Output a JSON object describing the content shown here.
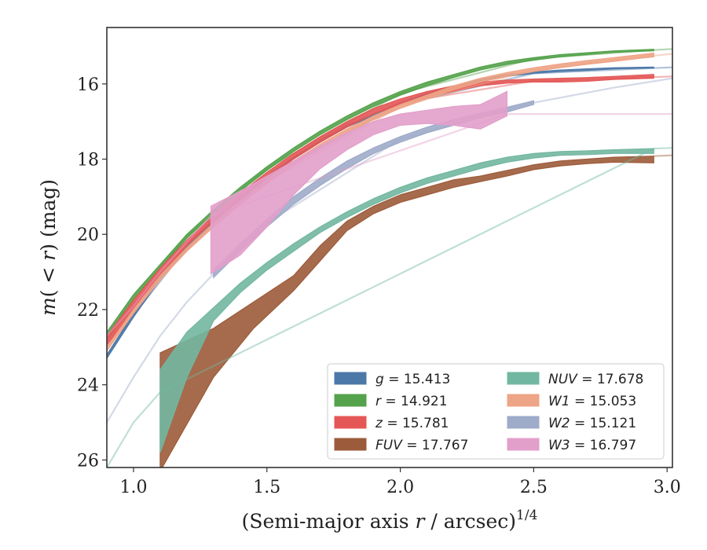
{
  "chart_data": {
    "type": "area",
    "xlabel": "(Semi-major axis r / arcsec)^1/4",
    "xlabel_parts": {
      "main": "(Semi-major axis ",
      "var": "r",
      "mid": " / arcsec)",
      "sup": "1/4"
    },
    "ylabel": "m(<r) (mag)",
    "ylabel_parts": {
      "pre": "m",
      "open": "( ",
      "lt": "<",
      "var": " r",
      "close": ") (mag)"
    },
    "xlim": [
      0.9,
      3.02
    ],
    "ylim": [
      26.2,
      14.5
    ],
    "y_inverted": true,
    "xticks": [
      1.0,
      1.5,
      2.0,
      2.5,
      3.0
    ],
    "xtick_labels": [
      "1.0",
      "1.5",
      "2.0",
      "2.5",
      "3.0"
    ],
    "yticks": [
      16,
      18,
      20,
      22,
      24,
      26
    ],
    "ytick_labels": [
      "16",
      "18",
      "20",
      "22",
      "24",
      "26"
    ],
    "grid": false,
    "legend_position": "lower-right",
    "series": [
      {
        "name": "g = 15.413",
        "band": "g",
        "value": "15.413",
        "color": "#4c78a8",
        "band_x": [
          0.9,
          1.0,
          1.1,
          1.2,
          1.3,
          1.4,
          1.5,
          1.6,
          1.7,
          1.8,
          1.9,
          2.0,
          2.1,
          2.2,
          2.3,
          2.4,
          2.5,
          2.6,
          2.7,
          2.8,
          2.95
        ],
        "band_y_lo": [
          23.2,
          22.1,
          21.1,
          20.3,
          19.6,
          19.0,
          18.45,
          17.95,
          17.5,
          17.1,
          16.8,
          16.5,
          16.25,
          16.05,
          15.88,
          15.75,
          15.68,
          15.63,
          15.6,
          15.57,
          15.55
        ],
        "band_y_hi": [
          23.3,
          22.2,
          21.2,
          20.4,
          19.7,
          19.1,
          18.5,
          18.0,
          17.55,
          17.15,
          16.85,
          16.55,
          16.3,
          16.1,
          15.92,
          15.8,
          15.72,
          15.67,
          15.64,
          15.6,
          15.58
        ],
        "line_x": [
          0.9,
          1.0,
          1.2,
          1.5,
          2.0,
          2.5,
          2.95,
          3.02
        ],
        "line_y": [
          23.25,
          22.15,
          20.35,
          18.5,
          16.55,
          15.72,
          15.58,
          15.56
        ]
      },
      {
        "name": "r = 14.921",
        "band": "r",
        "value": "14.921",
        "color": "#54a24b",
        "band_x": [
          0.9,
          1.0,
          1.1,
          1.2,
          1.3,
          1.4,
          1.5,
          1.6,
          1.7,
          1.8,
          1.9,
          2.0,
          2.1,
          2.2,
          2.3,
          2.4,
          2.5,
          2.6,
          2.7,
          2.8,
          2.95
        ],
        "band_y_lo": [
          22.6,
          21.6,
          20.8,
          20.0,
          19.35,
          18.75,
          18.2,
          17.7,
          17.25,
          16.85,
          16.5,
          16.2,
          15.95,
          15.75,
          15.55,
          15.4,
          15.3,
          15.22,
          15.17,
          15.12,
          15.08
        ],
        "band_y_hi": [
          22.8,
          21.75,
          20.9,
          20.1,
          19.45,
          18.85,
          18.3,
          17.8,
          17.35,
          16.95,
          16.6,
          16.3,
          16.05,
          15.83,
          15.63,
          15.48,
          15.37,
          15.28,
          15.22,
          15.16,
          15.12
        ],
        "line_x": [
          0.9,
          1.0,
          1.2,
          1.5,
          2.0,
          2.5,
          2.95,
          3.02
        ],
        "line_y": [
          22.7,
          21.7,
          20.05,
          18.25,
          16.25,
          15.33,
          15.1,
          15.07
        ]
      },
      {
        "name": "z = 15.781",
        "band": "z",
        "value": "15.781",
        "color": "#e45756",
        "band_x": [
          0.9,
          1.0,
          1.1,
          1.2,
          1.3,
          1.4,
          1.5,
          1.6,
          1.7,
          1.8,
          1.9,
          2.0,
          2.1,
          2.2,
          2.3,
          2.4,
          2.5,
          2.6,
          2.7,
          2.8,
          2.95
        ],
        "band_y_lo": [
          22.7,
          21.75,
          20.9,
          20.15,
          19.5,
          18.9,
          18.35,
          17.85,
          17.4,
          17.0,
          16.65,
          16.4,
          16.2,
          16.05,
          15.95,
          15.9,
          15.87,
          15.85,
          15.83,
          15.8,
          15.75
        ],
        "band_y_hi": [
          22.95,
          22.0,
          21.1,
          20.3,
          19.65,
          19.05,
          18.5,
          18.0,
          17.55,
          17.15,
          16.8,
          16.55,
          16.35,
          16.2,
          16.05,
          15.98,
          15.95,
          15.95,
          15.93,
          15.88,
          15.85
        ],
        "line_x": [
          0.9,
          1.0,
          1.2,
          1.5,
          2.0,
          2.5,
          2.95,
          3.02
        ],
        "line_y": [
          22.85,
          21.85,
          20.25,
          18.45,
          16.5,
          15.92,
          15.82,
          15.8
        ]
      },
      {
        "name": "FUV = 17.767",
        "band": "FUV",
        "value": "17.767",
        "color": "#9c5b3a",
        "band_x": [
          1.1,
          1.3,
          1.45,
          1.6,
          1.7,
          1.8,
          1.9,
          2.0,
          2.1,
          2.2,
          2.3,
          2.4,
          2.5,
          2.6,
          2.7,
          2.8,
          2.95
        ],
        "band_y_lo": [
          23.15,
          22.5,
          21.8,
          21.1,
          20.3,
          19.65,
          19.25,
          18.95,
          18.75,
          18.55,
          18.45,
          18.3,
          18.15,
          18.05,
          18.0,
          17.95,
          17.92
        ],
        "band_y_hi": [
          26.3,
          23.8,
          22.5,
          21.5,
          20.7,
          19.9,
          19.45,
          19.15,
          18.95,
          18.75,
          18.6,
          18.45,
          18.28,
          18.18,
          18.12,
          18.08,
          18.1
        ],
        "line_x": [
          2.95,
          3.02
        ],
        "line_y": [
          17.92,
          17.9
        ]
      },
      {
        "name": "NUV = 17.678",
        "band": "NUV",
        "value": "17.678",
        "color": "#72b7a1",
        "band_x": [
          1.1,
          1.2,
          1.3,
          1.4,
          1.5,
          1.6,
          1.7,
          1.8,
          1.9,
          2.0,
          2.1,
          2.2,
          2.3,
          2.4,
          2.5,
          2.6,
          2.7,
          2.8,
          2.95
        ],
        "band_y_lo": [
          23.6,
          22.6,
          21.95,
          21.3,
          20.75,
          20.25,
          19.8,
          19.4,
          19.05,
          18.75,
          18.5,
          18.3,
          18.1,
          17.95,
          17.85,
          17.8,
          17.78,
          17.75,
          17.72
        ],
        "band_y_hi": [
          25.8,
          23.8,
          22.3,
          21.55,
          20.95,
          20.45,
          19.95,
          19.55,
          19.2,
          18.9,
          18.65,
          18.45,
          18.25,
          18.08,
          17.97,
          17.9,
          17.88,
          17.85,
          17.85
        ],
        "line_x": [
          0.9,
          1.0,
          1.1,
          2.95,
          3.02
        ],
        "line_y": [
          26.2,
          25.0,
          24.2,
          17.72,
          17.7
        ]
      },
      {
        "name": "W1 = 15.053",
        "band": "W1",
        "value": "15.053",
        "color": "#eea486",
        "band_x": [
          0.9,
          1.0,
          1.1,
          1.2,
          1.3,
          1.4,
          1.5,
          1.6,
          1.7,
          1.8,
          1.9,
          2.0,
          2.1,
          2.2,
          2.3,
          2.4,
          2.5,
          2.6,
          2.7,
          2.8,
          2.9,
          2.95
        ],
        "band_y_lo": [
          23.0,
          22.0,
          21.1,
          20.35,
          19.7,
          19.1,
          18.55,
          18.05,
          17.6,
          17.2,
          16.85,
          16.55,
          16.3,
          16.05,
          15.85,
          15.7,
          15.57,
          15.47,
          15.38,
          15.3,
          15.22,
          15.18
        ],
        "band_y_hi": [
          23.1,
          22.1,
          21.2,
          20.45,
          19.8,
          19.2,
          18.65,
          18.15,
          17.7,
          17.3,
          16.95,
          16.65,
          16.4,
          16.15,
          15.95,
          15.8,
          15.67,
          15.57,
          15.48,
          15.4,
          15.32,
          15.28
        ],
        "line_x": [
          0.9,
          1.0,
          1.2,
          1.5,
          2.0,
          2.5,
          2.95,
          3.02
        ],
        "line_y": [
          23.05,
          22.05,
          20.4,
          18.6,
          16.6,
          15.62,
          15.25,
          15.2
        ]
      },
      {
        "name": "W2 = 15.121",
        "band": "W2",
        "value": "15.121",
        "color": "#9eabc9",
        "band_x": [
          1.3,
          1.4,
          1.5,
          1.6,
          1.7,
          1.8,
          1.9,
          2.0,
          2.1,
          2.2,
          2.3,
          2.4,
          2.5
        ],
        "band_y_lo": [
          20.95,
          20.25,
          19.6,
          19.0,
          18.5,
          18.05,
          17.7,
          17.4,
          17.15,
          16.95,
          16.78,
          16.62,
          16.45
        ],
        "band_y_hi": [
          21.15,
          20.45,
          19.8,
          19.2,
          18.7,
          18.25,
          17.85,
          17.55,
          17.3,
          17.1,
          16.9,
          16.75,
          16.55
        ],
        "line_x": [
          0.9,
          1.0,
          1.1,
          1.2,
          1.3,
          1.5,
          2.0,
          2.5,
          2.8,
          3.02
        ],
        "line_y": [
          25.0,
          23.8,
          22.7,
          21.8,
          21.05,
          19.7,
          17.47,
          16.5,
          16.1,
          15.85
        ]
      },
      {
        "name": "W3 = 16.797",
        "band": "W3",
        "value": "16.797",
        "color": "#e29fca",
        "band_x": [
          1.29,
          1.4,
          1.5,
          1.6,
          1.7,
          1.8,
          1.9,
          2.0,
          2.1,
          2.2,
          2.3,
          2.4
        ],
        "band_y_lo": [
          19.25,
          18.85,
          18.45,
          18.05,
          17.65,
          17.3,
          17.0,
          16.8,
          16.7,
          16.6,
          16.55,
          16.2
        ],
        "band_y_hi": [
          21.05,
          20.55,
          19.8,
          18.95,
          18.25,
          17.75,
          17.35,
          17.1,
          17.05,
          17.1,
          17.2,
          16.85
        ],
        "line_x": [
          0.9,
          1.0,
          1.1,
          1.2,
          1.29,
          2.4,
          3.02
        ],
        "line_y": [
          22.7,
          21.9,
          21.0,
          20.2,
          19.5,
          16.8,
          16.8
        ]
      }
    ]
  }
}
